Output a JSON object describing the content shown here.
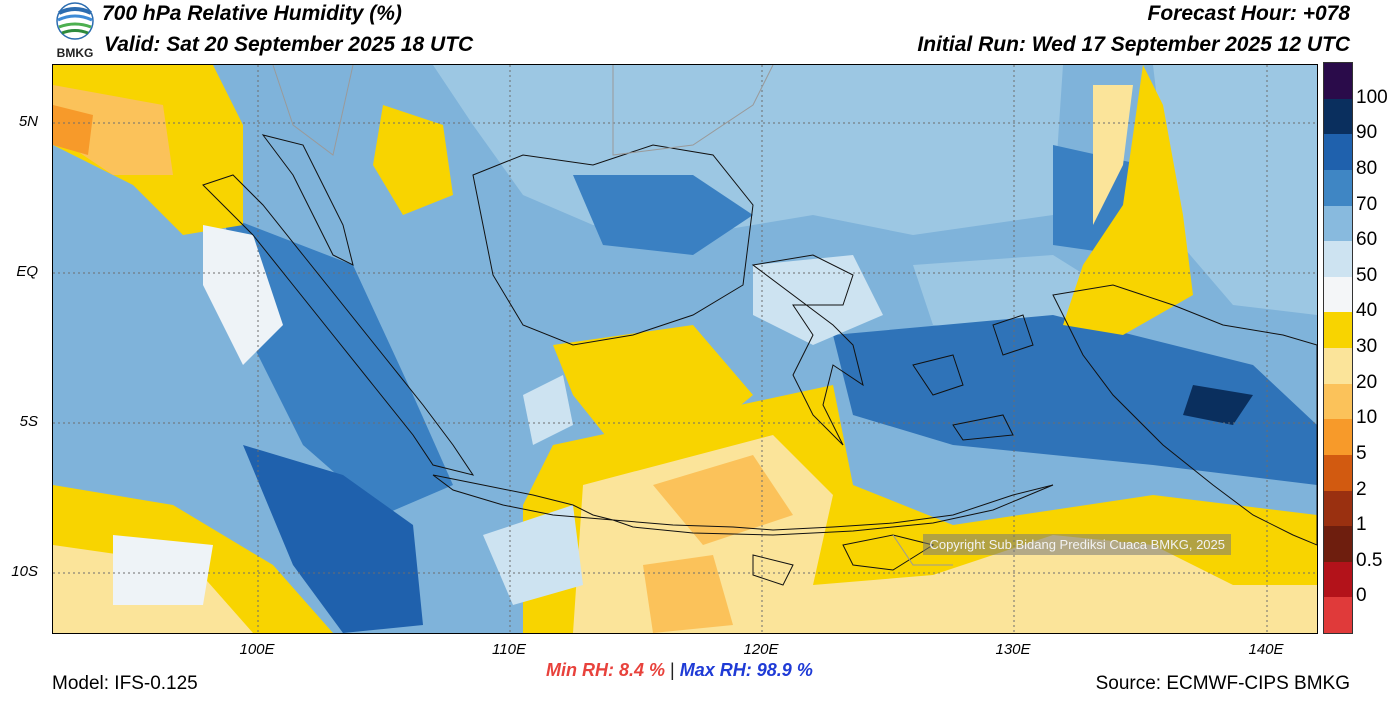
{
  "header": {
    "title": "700 hPa Relative Humidity (%)",
    "valid": "Valid: Sat 20 September 2025 18 UTC",
    "forecast_hour": "Forecast Hour: +078",
    "initial_run": "Initial Run: Wed 17 September 2025 12 UTC"
  },
  "logo": {
    "text": "BMKG",
    "icon": "bmkg-logo"
  },
  "map": {
    "lat_labels": [
      "5N",
      "EQ",
      "5S",
      "10S"
    ],
    "lon_labels": [
      "100E",
      "110E",
      "120E",
      "130E",
      "140E"
    ],
    "copyright": "Copyright Sub Bidang Prediksi Cuaca BMKG, 2025"
  },
  "colorbar": {
    "labels": [
      "100",
      "90",
      "80",
      "70",
      "60",
      "50",
      "40",
      "30",
      "20",
      "10",
      "5",
      "2",
      "1",
      "0.5",
      "0"
    ],
    "colors": [
      "#2a0b4a",
      "#0a2f5e",
      "#1f61ad",
      "#3f86c4",
      "#88bade",
      "#cde3f1",
      "#f4f6f8",
      "#f8d400",
      "#fbe49a",
      "#fbc25a",
      "#f79a2a",
      "#d25a10",
      "#9a3010",
      "#6e1e0e",
      "#b3121a",
      "#e03a3a"
    ]
  },
  "footer": {
    "min_label": "Min RH:",
    "min_value": "8.4 %",
    "separator": "|",
    "max_label": "Max RH:",
    "max_value": "98.9 %",
    "model": "Model: IFS-0.125",
    "source": "Source: ECMWF-CIPS BMKG"
  }
}
